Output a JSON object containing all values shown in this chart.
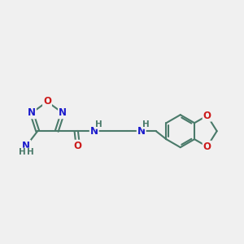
{
  "bg_color": "#f0f0f0",
  "bond_color": "#4a7a6a",
  "bond_width": 1.5,
  "atom_colors": {
    "C": "#4a7a6a",
    "N": "#1a1acc",
    "O": "#cc1a1a",
    "H": "#4a7a6a"
  },
  "font_size_atom": 8.5,
  "font_size_H": 7.5,
  "fig_w": 3.0,
  "fig_h": 3.0,
  "dpi": 100
}
